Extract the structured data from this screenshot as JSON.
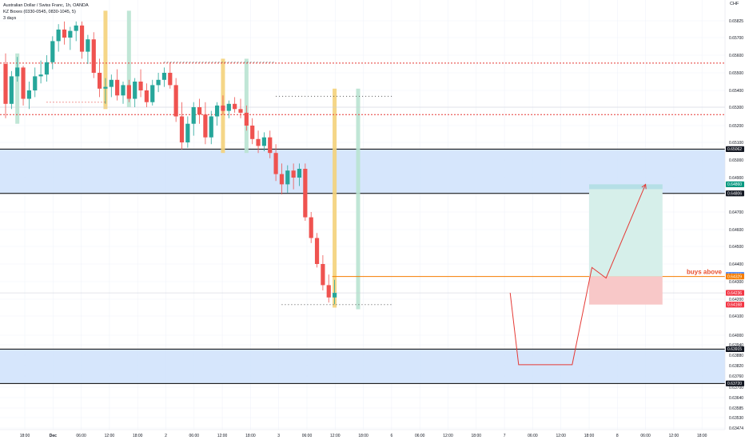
{
  "legend": {
    "title": "Australian Dollar / Swiss Franc, 1h, OANDA",
    "indicator": "KZ Boxes (0330-0545, 0830-1045, 5)",
    "period": "3 days"
  },
  "currency_label": "CHF",
  "colors": {
    "up": "#26a69a",
    "down": "#ef5350",
    "zone_fill": "#cfe2fb",
    "zone_line": "#000000",
    "red_dotted": "#e53935",
    "entry_line": "#f57c00",
    "projection": "#e53935",
    "target_box": "#d6efea",
    "stop_box": "#f8c8c8",
    "yellow_bar": "#f4d27a",
    "green_bar": "#b9e3d2"
  },
  "chart_data": {
    "type": "candlestick",
    "title": "Australian Dollar / Swiss Franc, 1h, OANDA",
    "ylim": [
      0.63474,
      0.65825
    ],
    "y_ticks": [
      "0.65825",
      "0.65700",
      "0.65600",
      "0.65500",
      "0.65400",
      "0.65300",
      "0.65200",
      "0.65100",
      "0.65000",
      "0.64900",
      "0.64800",
      "0.64700",
      "0.64600",
      "0.64500",
      "0.64400",
      "0.64300",
      "0.64200",
      "0.64100",
      "0.64000",
      "0.63940",
      "0.63880",
      "0.63820",
      "0.63760",
      "0.63700",
      "0.63640",
      "0.63585",
      "0.63530",
      "0.63474"
    ],
    "x_ticks": [
      "18:00",
      "Dec",
      "06:00",
      "12:00",
      "18:00",
      "2",
      "06:00",
      "12:00",
      "18:00",
      "3",
      "06:00",
      "12:00",
      "18:00",
      "6",
      "06:00",
      "12:00",
      "18:00",
      "7",
      "06:00",
      "12:00",
      "18:00",
      "8",
      "06:00",
      "12:00",
      "18:00"
    ],
    "price_badges": [
      {
        "label": "0.65062",
        "value": 0.65062,
        "style": "black"
      },
      {
        "label": "0.64860",
        "value": 0.6486,
        "style": "teal"
      },
      {
        "label": "0.64806",
        "value": 0.64806,
        "style": "black"
      },
      {
        "label": "0.64338",
        "value": 0.64338,
        "style": "blue"
      },
      {
        "label": "0.64329",
        "value": 0.64329,
        "style": "orange"
      },
      {
        "label": "0.64236",
        "value": 0.64236,
        "style": "red"
      },
      {
        "label": "0.64168",
        "value": 0.64168,
        "style": "red"
      },
      {
        "label": "0.63915",
        "value": 0.63915,
        "style": "black"
      },
      {
        "label": "0.63720",
        "value": 0.6372,
        "style": "black"
      }
    ],
    "zones": [
      {
        "top": 0.65062,
        "bottom": 0.64806
      },
      {
        "top": 0.63915,
        "bottom": 0.6372
      }
    ],
    "red_dotted_levels": [
      0.65555,
      0.6526
    ],
    "entry_level": 0.64329,
    "annotation": "buys above",
    "target_box": {
      "x_start": 20.0,
      "x_end": 22.6,
      "top": 0.6486,
      "bottom": 0.64329
    },
    "stop_box": {
      "x_start": 20.0,
      "x_end": 22.6,
      "top": 0.64329,
      "bottom": 0.64168
    },
    "projection_path": [
      [
        17.2,
        0.64236
      ],
      [
        17.5,
        0.63825
      ],
      [
        19.4,
        0.63825
      ],
      [
        20.1,
        0.6438
      ],
      [
        20.6,
        0.6432
      ],
      [
        22.0,
        0.6486
      ]
    ],
    "candles": [
      [
        0.6555,
        0.6561,
        0.6524,
        0.6532
      ],
      [
        0.6532,
        0.6551,
        0.6529,
        0.6548
      ],
      [
        0.6548,
        0.6559,
        0.6545,
        0.6553
      ],
      [
        0.6553,
        0.6554,
        0.6531,
        0.6535
      ],
      [
        0.6535,
        0.6545,
        0.6529,
        0.654
      ],
      [
        0.654,
        0.6553,
        0.6536,
        0.6548
      ],
      [
        0.6548,
        0.6557,
        0.6544,
        0.6549
      ],
      [
        0.6549,
        0.656,
        0.6545,
        0.6556
      ],
      [
        0.6556,
        0.6571,
        0.6552,
        0.6568
      ],
      [
        0.6568,
        0.658,
        0.6562,
        0.6576
      ],
      [
        0.6576,
        0.6582,
        0.6566,
        0.657
      ],
      [
        0.657,
        0.6578,
        0.6563,
        0.6575
      ],
      [
        0.6575,
        0.6582,
        0.6568,
        0.6579
      ],
      [
        0.6579,
        0.6582,
        0.6558,
        0.6562
      ],
      [
        0.6562,
        0.6572,
        0.6555,
        0.6569
      ],
      [
        0.6569,
        0.6574,
        0.6547,
        0.655
      ],
      [
        0.655,
        0.6558,
        0.6536,
        0.6541
      ],
      [
        0.6541,
        0.6547,
        0.6532,
        0.6542
      ],
      [
        0.6542,
        0.6549,
        0.6536,
        0.6546
      ],
      [
        0.6546,
        0.6552,
        0.6534,
        0.6537
      ],
      [
        0.6537,
        0.6545,
        0.6532,
        0.6543
      ],
      [
        0.6543,
        0.6546,
        0.6533,
        0.6535
      ],
      [
        0.6535,
        0.6547,
        0.653,
        0.6545
      ],
      [
        0.6545,
        0.6552,
        0.6536,
        0.654
      ],
      [
        0.654,
        0.6544,
        0.653,
        0.6533
      ],
      [
        0.6533,
        0.6546,
        0.6531,
        0.6543
      ],
      [
        0.6543,
        0.655,
        0.6539,
        0.6546
      ],
      [
        0.6546,
        0.6553,
        0.6542,
        0.655
      ],
      [
        0.655,
        0.6556,
        0.6541,
        0.6543
      ],
      [
        0.6543,
        0.6547,
        0.6522,
        0.6525
      ],
      [
        0.6525,
        0.6533,
        0.6506,
        0.651
      ],
      [
        0.651,
        0.6525,
        0.6507,
        0.6521
      ],
      [
        0.6521,
        0.6533,
        0.6514,
        0.653
      ],
      [
        0.653,
        0.6535,
        0.6521,
        0.6526
      ],
      [
        0.6526,
        0.6533,
        0.6509,
        0.6513
      ],
      [
        0.6513,
        0.6528,
        0.6509,
        0.6525
      ],
      [
        0.6525,
        0.6533,
        0.652,
        0.6531
      ],
      [
        0.6531,
        0.6537,
        0.6526,
        0.6528
      ],
      [
        0.6528,
        0.6534,
        0.6524,
        0.6532
      ],
      [
        0.6532,
        0.6536,
        0.6527,
        0.6529
      ],
      [
        0.6529,
        0.6535,
        0.6524,
        0.6527
      ],
      [
        0.6527,
        0.6531,
        0.6517,
        0.652
      ],
      [
        0.652,
        0.6524,
        0.6509,
        0.6512
      ],
      [
        0.6512,
        0.6517,
        0.6504,
        0.6508
      ],
      [
        0.6508,
        0.6516,
        0.6505,
        0.6513
      ],
      [
        0.6513,
        0.6517,
        0.6501,
        0.6504
      ],
      [
        0.6504,
        0.6509,
        0.6488,
        0.6492
      ],
      [
        0.6492,
        0.6498,
        0.648,
        0.6486
      ],
      [
        0.6486,
        0.6497,
        0.6481,
        0.6494
      ],
      [
        0.6494,
        0.6498,
        0.6483,
        0.649
      ],
      [
        0.649,
        0.6498,
        0.6485,
        0.6495
      ],
      [
        0.6495,
        0.6498,
        0.6465,
        0.6467
      ],
      [
        0.6467,
        0.647,
        0.6452,
        0.6455
      ],
      [
        0.6455,
        0.6458,
        0.6438,
        0.644
      ],
      [
        0.644,
        0.6445,
        0.6425,
        0.6428
      ],
      [
        0.6428,
        0.6434,
        0.6418,
        0.6421
      ],
      [
        0.6421,
        0.6431,
        0.6417,
        0.64236
      ]
    ]
  }
}
